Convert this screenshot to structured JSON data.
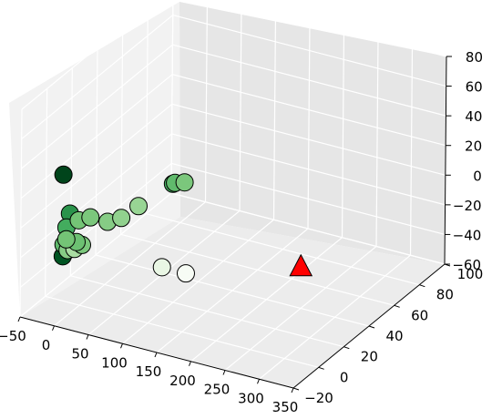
{
  "chart_data": {
    "type": "scatter",
    "projection": "3d",
    "grid": true,
    "colormap": "Greens",
    "x_ticks": [
      "−50",
      "0",
      "50",
      "100",
      "150",
      "200",
      "250",
      "300",
      "350"
    ],
    "y_ticks": [
      "−20",
      "0",
      "20",
      "40",
      "60",
      "80",
      "100"
    ],
    "z_ticks": [
      "−60",
      "−40",
      "−20",
      "0",
      "20",
      "40",
      "60",
      "80"
    ],
    "xlim": [
      -50,
      350
    ],
    "ylim": [
      -20,
      100
    ],
    "zlim": [
      -60,
      80
    ],
    "series": [
      {
        "marker": "circle",
        "points": [
          {
            "x": -25,
            "y": 0,
            "z": 25,
            "shade": 1.0
          },
          {
            "x": -25,
            "y": 0,
            "z": -30,
            "shade": 0.95
          },
          {
            "x": -15,
            "y": 0,
            "z": 0,
            "shade": 0.72
          },
          {
            "x": -20,
            "y": 0,
            "z": -10,
            "shade": 0.62
          },
          {
            "x": -24,
            "y": 0,
            "z": -22,
            "shade": 0.55
          },
          {
            "x": -18,
            "y": 0,
            "z": -25,
            "shade": 0.45
          },
          {
            "x": -8,
            "y": 0,
            "z": -23,
            "shade": 0.35
          },
          {
            "x": 3,
            "y": 0,
            "z": -19,
            "shade": 0.48
          },
          {
            "x": -5,
            "y": 0,
            "z": -18,
            "shade": 0.52
          },
          {
            "x": -20,
            "y": 0,
            "z": -18,
            "shade": 0.5
          },
          {
            "x": -2,
            "y": 0,
            "z": -3,
            "shade": 0.5
          },
          {
            "x": 15,
            "y": 0,
            "z": 1,
            "shade": 0.48
          },
          {
            "x": 40,
            "y": 0,
            "z": 1,
            "shade": 0.45
          },
          {
            "x": 60,
            "y": 0,
            "z": 6,
            "shade": 0.42
          },
          {
            "x": 85,
            "y": 0,
            "z": 17,
            "shade": 0.4
          },
          {
            "x": 120,
            "y": 0,
            "z": -20,
            "shade": 0.1
          },
          {
            "x": 155,
            "y": 0,
            "z": -20,
            "shade": 0.0
          },
          {
            "x": 135,
            "y": 0,
            "z": 38,
            "shade": 0.62
          },
          {
            "x": 138,
            "y": 0,
            "z": 39,
            "shade": 0.55
          },
          {
            "x": 152,
            "y": 0,
            "z": 41,
            "shade": 0.48
          }
        ]
      },
      {
        "marker": "triangle",
        "color": "#ff0000",
        "points": [
          {
            "x": 195,
            "y": 70,
            "z": -60
          }
        ]
      }
    ]
  }
}
